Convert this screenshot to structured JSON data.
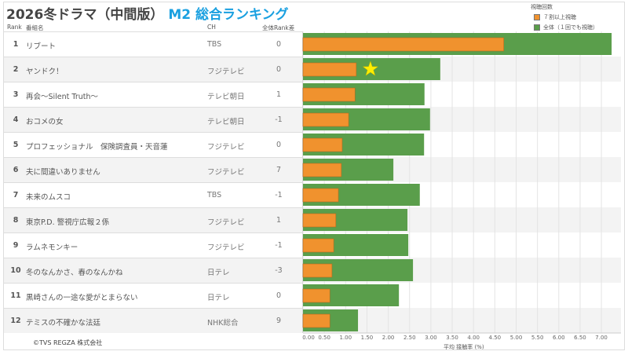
{
  "header": {
    "title_main": "2026冬ドラマ（中間版）",
    "title_accent": "M2 総合ランキング"
  },
  "columns": {
    "rank": "Rank",
    "name": "番組名",
    "ch": "CH",
    "diff": "全体Rank差"
  },
  "legend": {
    "title": "視聴回数",
    "items": [
      {
        "label": "７割以上視聴",
        "color": "#f0922e"
      },
      {
        "label": "全体（１回でも視聴）",
        "color": "#5a9e4b"
      }
    ]
  },
  "rows": [
    {
      "rank": "1",
      "name": "リブート",
      "ch": "TBS",
      "diff": "0"
    },
    {
      "rank": "2",
      "name": "ヤンドク！",
      "ch": "フジテレビ",
      "diff": "0"
    },
    {
      "rank": "3",
      "name": "再会～Silent Truth～",
      "ch": "テレビ朝日",
      "diff": "1"
    },
    {
      "rank": "4",
      "name": "おコメの女",
      "ch": "テレビ朝日",
      "diff": "-1"
    },
    {
      "rank": "5",
      "name": "プロフェッショナル　保険調査員・天音蓮",
      "ch": "フジテレビ",
      "diff": "0"
    },
    {
      "rank": "6",
      "name": "夫に間違いありません",
      "ch": "フジテレビ",
      "diff": "7"
    },
    {
      "rank": "7",
      "name": "未来のムスコ",
      "ch": "TBS",
      "diff": "-1"
    },
    {
      "rank": "8",
      "name": "東京P.D. 警視庁広報２係",
      "ch": "フジテレビ",
      "diff": "1"
    },
    {
      "rank": "9",
      "name": "ラムネモンキー",
      "ch": "フジテレビ",
      "diff": "-1"
    },
    {
      "rank": "10",
      "name": "冬のなんかさ、春のなんかね",
      "ch": "日テレ",
      "diff": "-3"
    },
    {
      "rank": "11",
      "name": "黒崎さんの一途な愛がとまらない",
      "ch": "日テレ",
      "diff": "0"
    },
    {
      "rank": "12",
      "name": "テミスの不確かな法廷",
      "ch": "NHK総合",
      "diff": "9"
    }
  ],
  "chart_data": {
    "type": "bar",
    "orientation": "horizontal",
    "xlabel": "平均 接触率 (%)",
    "xlim": [
      0,
      7.3
    ],
    "ticks": [
      "0.00",
      "0.50",
      "1.00",
      "1.50",
      "2.00",
      "2.50",
      "3.00",
      "3.50",
      "4.00",
      "4.50",
      "5.00",
      "5.50",
      "6.00",
      "6.50",
      "7.00"
    ],
    "grid": true,
    "legend_position": "top-right",
    "series": [
      {
        "name": "全体（１回でも視聴）",
        "color": "#5a9e4b",
        "values": [
          7.24,
          3.22,
          2.85,
          2.98,
          2.84,
          2.12,
          2.74,
          2.45,
          2.47,
          2.58,
          2.25,
          1.29
        ]
      },
      {
        "name": "７割以上視聴",
        "color": "#f0922e",
        "values": [
          4.71,
          1.25,
          1.22,
          1.07,
          0.92,
          0.9,
          0.83,
          0.77,
          0.72,
          0.68,
          0.63,
          0.63
        ]
      }
    ],
    "annotations": [
      {
        "type": "star",
        "row": 2,
        "color": "#ffee00"
      }
    ]
  },
  "footer": "©TVS REGZA 株式会社"
}
